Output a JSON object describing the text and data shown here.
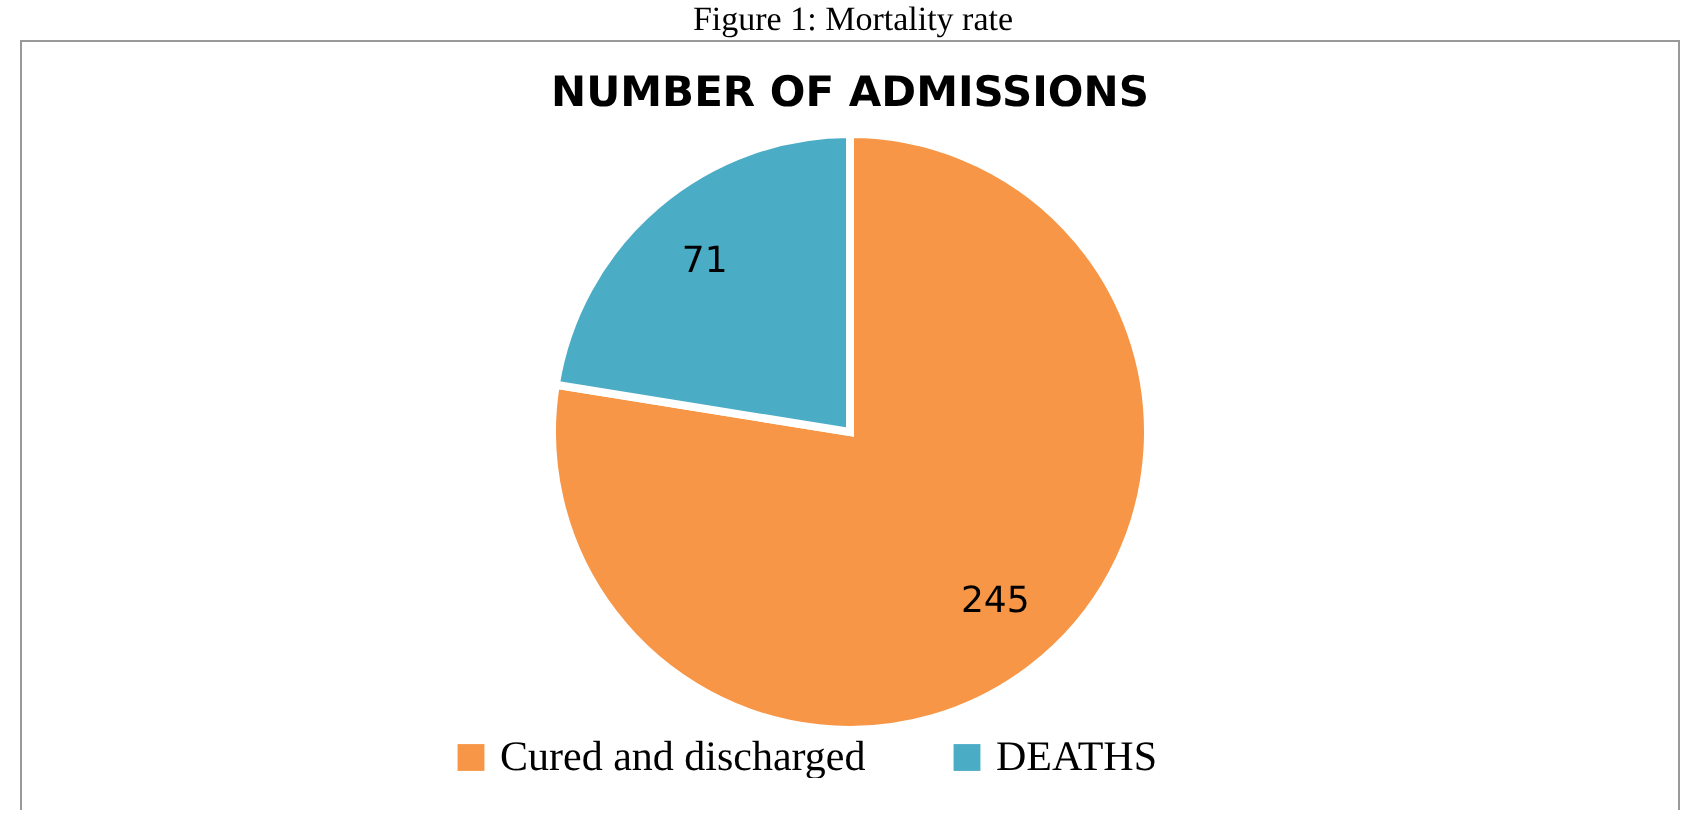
{
  "chart_data": {
    "type": "pie",
    "title": "NUMBER OF ADMISSIONS",
    "annotations": [
      "Figure 1: Mortality rate"
    ],
    "categories": [
      "Cured and discharged",
      "DEATHS"
    ],
    "values": [
      245,
      71
    ],
    "colors": [
      "#f79646",
      "#4bacc6"
    ],
    "data_labels": true,
    "legend": "bottom"
  }
}
